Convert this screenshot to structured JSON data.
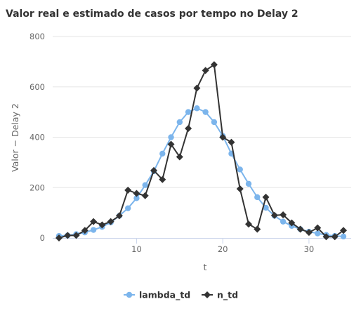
{
  "chart_data": {
    "type": "line",
    "title": "Valor real e estimado de casos por tempo no Delay 2",
    "xlabel": "t",
    "ylabel": "Valor − Delay 2",
    "xlim": [
      1,
      34
    ],
    "ylim": [
      0,
      800
    ],
    "x_ticks": [
      10,
      20,
      30
    ],
    "y_ticks": [
      0,
      200,
      400,
      600,
      800
    ],
    "grid": "horizontal",
    "legend_position": "bottom",
    "x": [
      1,
      2,
      3,
      4,
      5,
      6,
      7,
      8,
      9,
      10,
      11,
      12,
      13,
      14,
      15,
      16,
      17,
      18,
      19,
      20,
      21,
      22,
      23,
      24,
      25,
      26,
      27,
      28,
      29,
      30,
      31,
      32,
      33,
      34
    ],
    "series": [
      {
        "name": "lambda_td",
        "color": "#7cb5ec",
        "marker": "circle",
        "values": [
          8,
          10,
          15,
          22,
          32,
          44,
          62,
          88,
          118,
          158,
          210,
          265,
          335,
          400,
          460,
          500,
          515,
          500,
          460,
          405,
          335,
          272,
          215,
          162,
          120,
          88,
          65,
          48,
          35,
          25,
          18,
          12,
          8,
          6
        ]
      },
      {
        "name": "n_td",
        "color": "#333333",
        "marker": "diamond",
        "values": [
          0,
          10,
          10,
          30,
          65,
          52,
          65,
          88,
          190,
          177,
          168,
          268,
          232,
          372,
          322,
          435,
          595,
          665,
          688,
          400,
          380,
          195,
          55,
          35,
          162,
          90,
          92,
          60,
          35,
          22,
          40,
          5,
          5,
          30
        ]
      }
    ]
  }
}
